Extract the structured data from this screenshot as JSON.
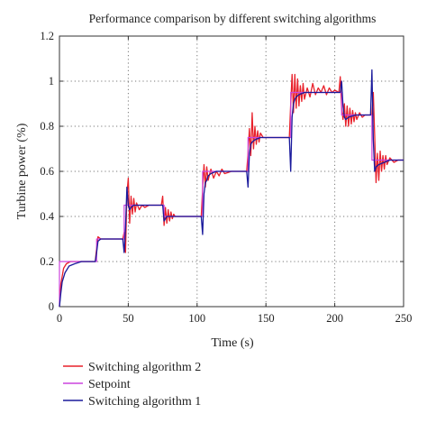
{
  "colors": {
    "background": "#ffffff",
    "grid": "#7a7a7a",
    "axis": "#333333",
    "switching_algorithm_2": "#e8202a",
    "setpoint": "#cc44dd",
    "switching_algorithm_1": "#1a1a9c"
  },
  "chart_data": {
    "type": "line",
    "title": "Performance comparison by different switching algorithms",
    "xlabel": "Time (s)",
    "ylabel": "Turbine power (%)",
    "xlim": [
      0,
      250
    ],
    "ylim": [
      0,
      1.2
    ],
    "xticks": [
      0,
      50,
      100,
      150,
      200,
      250
    ],
    "yticks": [
      0,
      0.2,
      0.4,
      0.6,
      0.8,
      1,
      1.2
    ],
    "xtick_labels": [
      "0",
      "50",
      "100",
      "150",
      "200",
      "250"
    ],
    "ytick_labels": [
      "0",
      "0.2",
      "0.4",
      "0.6",
      "0.8",
      "1",
      "1.2"
    ],
    "grid": "dotted",
    "legend_position": "bottom",
    "series": [
      {
        "name": "Switching algorithm 2",
        "color_key": "switching_algorithm_2",
        "x": [
          0,
          1,
          3,
          5,
          8,
          12,
          20,
          26,
          27,
          28,
          30,
          35,
          40,
          46,
          47,
          48,
          49,
          50,
          51,
          52,
          53,
          54,
          55,
          56,
          58,
          60,
          62,
          65,
          70,
          74,
          75,
          76,
          77,
          78,
          79,
          80,
          81,
          82,
          83,
          84,
          86,
          90,
          95,
          100,
          103,
          104,
          105,
          106,
          107,
          108,
          110,
          112,
          114,
          116,
          118,
          120,
          125,
          130,
          136,
          137,
          138,
          139,
          140,
          141,
          142,
          143,
          144,
          145,
          146,
          148,
          150,
          155,
          160,
          167,
          168,
          169,
          170,
          171,
          172,
          173,
          174,
          175,
          176,
          177,
          178,
          180,
          182,
          184,
          186,
          188,
          190,
          192,
          194,
          196,
          198,
          200,
          203,
          204,
          205,
          206,
          207,
          208,
          209,
          210,
          211,
          212,
          213,
          214,
          215,
          216,
          218,
          220,
          222,
          225,
          227,
          228,
          229,
          230,
          231,
          232,
          233,
          234,
          235,
          236,
          237,
          238,
          240,
          243,
          246,
          250
        ],
        "y": [
          0,
          0.1,
          0.17,
          0.19,
          0.2,
          0.2,
          0.2,
          0.2,
          0.26,
          0.31,
          0.3,
          0.3,
          0.3,
          0.3,
          0.33,
          0.24,
          0.5,
          0.57,
          0.37,
          0.49,
          0.41,
          0.48,
          0.42,
          0.46,
          0.43,
          0.45,
          0.44,
          0.45,
          0.45,
          0.45,
          0.49,
          0.36,
          0.44,
          0.37,
          0.43,
          0.38,
          0.42,
          0.39,
          0.41,
          0.4,
          0.4,
          0.4,
          0.4,
          0.4,
          0.4,
          0.52,
          0.63,
          0.53,
          0.62,
          0.56,
          0.61,
          0.57,
          0.6,
          0.58,
          0.61,
          0.59,
          0.6,
          0.6,
          0.6,
          0.68,
          0.79,
          0.67,
          0.86,
          0.7,
          0.8,
          0.72,
          0.78,
          0.73,
          0.77,
          0.75,
          0.75,
          0.75,
          0.75,
          0.75,
          0.9,
          1.03,
          0.86,
          1.03,
          0.88,
          1.01,
          0.89,
          0.98,
          0.91,
          0.99,
          0.92,
          0.97,
          0.93,
          0.99,
          0.94,
          0.97,
          0.95,
          0.98,
          0.94,
          0.97,
          0.95,
          0.96,
          0.95,
          1.02,
          0.88,
          0.83,
          0.9,
          0.8,
          0.89,
          0.8,
          0.88,
          0.81,
          0.87,
          0.82,
          0.86,
          0.83,
          0.86,
          0.84,
          0.85,
          0.85,
          0.85,
          0.95,
          0.76,
          0.55,
          0.68,
          0.56,
          0.69,
          0.6,
          0.67,
          0.61,
          0.67,
          0.63,
          0.66,
          0.64,
          0.65,
          0.65
        ]
      },
      {
        "name": "Setpoint",
        "color_key": "setpoint",
        "x": [
          0,
          0,
          27,
          27,
          47,
          47,
          76,
          76,
          104,
          104,
          137,
          137,
          168,
          168,
          205,
          205,
          227,
          227,
          250
        ],
        "y": [
          0,
          0.2,
          0.2,
          0.3,
          0.3,
          0.45,
          0.45,
          0.4,
          0.4,
          0.6,
          0.6,
          0.75,
          0.75,
          0.95,
          0.95,
          0.85,
          0.85,
          0.65,
          0.65
        ]
      },
      {
        "name": "Switching algorithm 1",
        "color_key": "switching_algorithm_1",
        "x": [
          0,
          1,
          2,
          4,
          7,
          11,
          16,
          20,
          26,
          27,
          28,
          30,
          35,
          40,
          46,
          47,
          48,
          49,
          50,
          51,
          52,
          54,
          57,
          60,
          65,
          70,
          75,
          76,
          77,
          78,
          80,
          85,
          90,
          95,
          100,
          103,
          104,
          105,
          106,
          107,
          108,
          110,
          114,
          120,
          125,
          130,
          136,
          137,
          138,
          139,
          140,
          142,
          146,
          150,
          155,
          160,
          167,
          168,
          169,
          170,
          171,
          172,
          174,
          178,
          183,
          190,
          196,
          200,
          204,
          205,
          206,
          207,
          208,
          210,
          215,
          220,
          226,
          227,
          228,
          229,
          230,
          232,
          236,
          240,
          245,
          250
        ],
        "y": [
          0,
          0.06,
          0.11,
          0.15,
          0.18,
          0.19,
          0.2,
          0.2,
          0.2,
          0.24,
          0.29,
          0.3,
          0.3,
          0.3,
          0.3,
          0.24,
          0.35,
          0.53,
          0.45,
          0.43,
          0.44,
          0.45,
          0.45,
          0.45,
          0.45,
          0.45,
          0.45,
          0.38,
          0.39,
          0.4,
          0.4,
          0.4,
          0.4,
          0.4,
          0.4,
          0.4,
          0.32,
          0.5,
          0.55,
          0.56,
          0.58,
          0.59,
          0.6,
          0.6,
          0.6,
          0.6,
          0.6,
          0.53,
          0.68,
          0.72,
          0.73,
          0.74,
          0.75,
          0.75,
          0.75,
          0.75,
          0.75,
          0.6,
          0.84,
          0.9,
          0.92,
          0.93,
          0.94,
          0.95,
          0.95,
          0.95,
          0.95,
          0.95,
          0.95,
          1.0,
          0.89,
          0.84,
          0.83,
          0.84,
          0.85,
          0.85,
          0.85,
          1.05,
          0.74,
          0.6,
          0.62,
          0.63,
          0.64,
          0.65,
          0.65,
          0.65
        ]
      }
    ]
  },
  "legend": {
    "items": [
      {
        "label": "Switching algorithm 2",
        "color_key": "switching_algorithm_2"
      },
      {
        "label": "Setpoint",
        "color_key": "setpoint"
      },
      {
        "label": "Switching algorithm 1",
        "color_key": "switching_algorithm_1"
      }
    ]
  }
}
